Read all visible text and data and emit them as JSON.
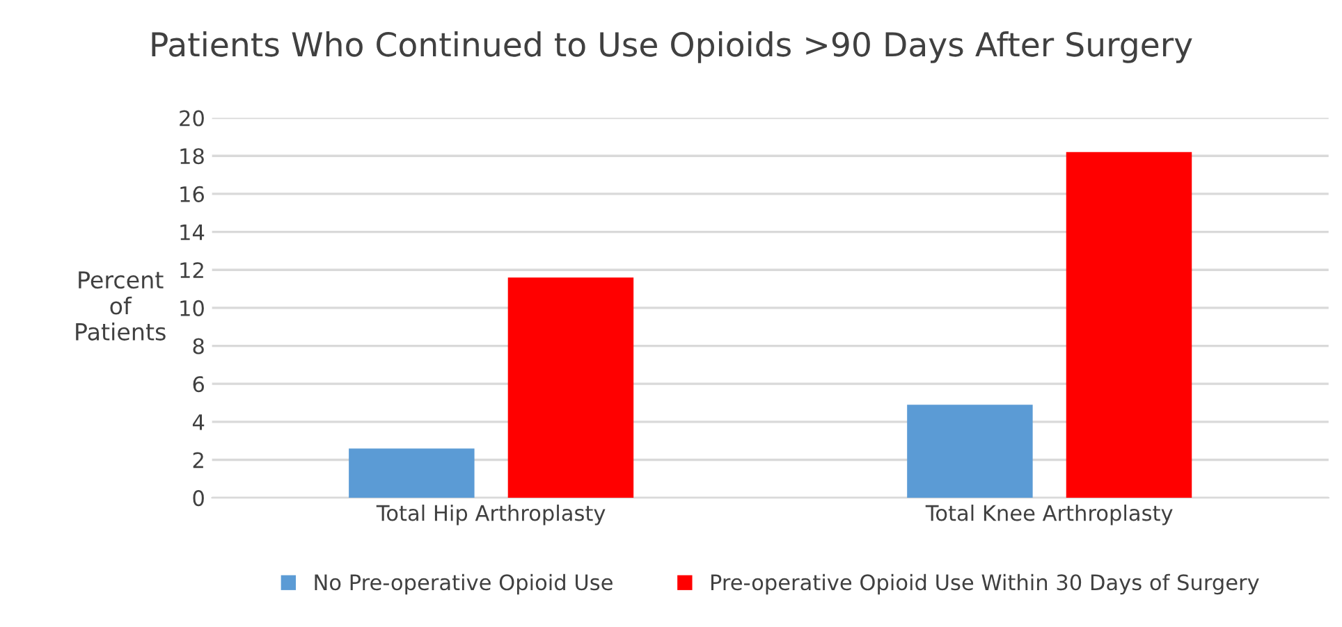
{
  "chart_data": {
    "type": "bar",
    "title": "Patients Who Continued to Use Opioids >90 Days After Surgery",
    "ylabel": "Percent\nof\nPatients",
    "categories": [
      "Total Hip Arthroplasty",
      "Total Knee Arthroplasty"
    ],
    "series": [
      {
        "name": "No Pre-operative Opioid Use",
        "color": "#5b9bd5",
        "values": [
          2.6,
          4.9
        ]
      },
      {
        "name": "Pre-operative Opioid Use Within 30 Days of Surgery",
        "color": "#ff0000",
        "values": [
          11.6,
          18.2
        ]
      }
    ],
    "ylim": [
      0,
      20
    ],
    "yticks": [
      0,
      2,
      4,
      6,
      8,
      10,
      12,
      14,
      16,
      18,
      20
    ],
    "grid": "y",
    "legend": "bottom"
  }
}
